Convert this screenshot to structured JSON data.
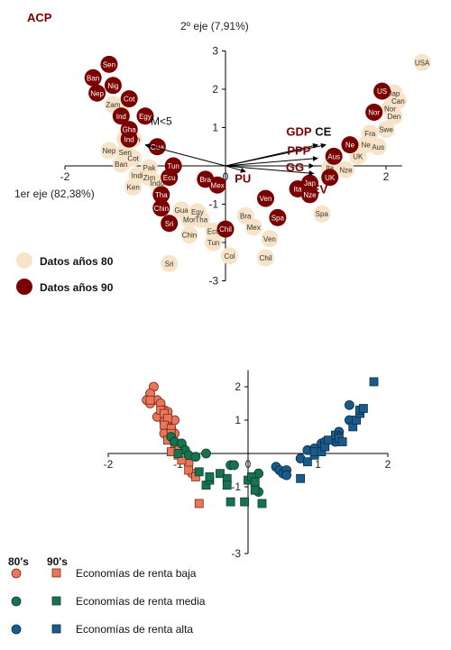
{
  "chart_data": [
    {
      "type": "scatter",
      "title": "ACP",
      "xlabel": "1er eje (82,38%)",
      "ylabel": "2º eje (7,91%)",
      "xlim": [
        -2,
        2.5
      ],
      "ylim": [
        -3,
        3
      ],
      "xticks": [
        "-2",
        "0",
        "2"
      ],
      "yticks": [
        "3",
        "2",
        "1",
        "-1",
        "-2",
        "-3"
      ],
      "colors": {
        "s80": "#f6e3c8",
        "s90": "#7a0000",
        "vector": "#000000",
        "vector_label": "#7a0000"
      },
      "vectors": [
        {
          "name": "M<5",
          "x": -1.0,
          "y": 0.55
        },
        {
          "name": "GDP",
          "x": 1.15,
          "y": 0.55
        },
        {
          "name": "CE",
          "x": 1.25,
          "y": 0.55
        },
        {
          "name": "PPP",
          "x": 1.15,
          "y": 0.2
        },
        {
          "name": "GG",
          "x": 1.1,
          "y": 0.0
        },
        {
          "name": "EV",
          "x": 1.1,
          "y": -0.2
        },
        {
          "name": "PU",
          "x": 0.25,
          "y": -0.15
        }
      ],
      "series": [
        {
          "name": "Datos años 80",
          "points": [
            {
              "label": "USA",
              "x": 2.45,
              "y": 2.7
            },
            {
              "label": "Jap",
              "x": 2.1,
              "y": 1.9
            },
            {
              "label": "Can",
              "x": 2.15,
              "y": 1.7
            },
            {
              "label": "Nor",
              "x": 2.05,
              "y": 1.5
            },
            {
              "label": "Den",
              "x": 2.1,
              "y": 1.3
            },
            {
              "label": "Swe",
              "x": 2.0,
              "y": 0.95
            },
            {
              "label": "Fra",
              "x": 1.8,
              "y": 0.85
            },
            {
              "label": "Aus",
              "x": 1.9,
              "y": 0.5
            },
            {
              "label": "Ne",
              "x": 1.75,
              "y": 0.55
            },
            {
              "label": "UK",
              "x": 1.65,
              "y": 0.25
            },
            {
              "label": "Nze",
              "x": 1.5,
              "y": -0.1
            },
            {
              "label": "Ita",
              "x": 1.3,
              "y": -0.05
            },
            {
              "label": "Spa",
              "x": 1.2,
              "y": -1.25
            },
            {
              "label": "Zam",
              "x": -1.4,
              "y": 1.6
            },
            {
              "label": "Nig",
              "x": -1.3,
              "y": 1.4
            },
            {
              "label": "Ind",
              "x": -1.25,
              "y": 0.7
            },
            {
              "label": "Ghn",
              "x": -1.15,
              "y": 0.7
            },
            {
              "label": "Nep",
              "x": -1.45,
              "y": 0.4
            },
            {
              "label": "Sen",
              "x": -1.25,
              "y": 0.35
            },
            {
              "label": "Cot",
              "x": -1.15,
              "y": 0.2
            },
            {
              "label": "Ban",
              "x": -1.3,
              "y": 0.05
            },
            {
              "label": "Pak",
              "x": -0.95,
              "y": -0.05
            },
            {
              "label": "Indi",
              "x": -1.1,
              "y": -0.25
            },
            {
              "label": "Zim",
              "x": -0.95,
              "y": -0.3
            },
            {
              "label": "Indo",
              "x": -0.85,
              "y": -0.45
            },
            {
              "label": "Ken",
              "x": -1.15,
              "y": -0.55
            },
            {
              "label": "Gua",
              "x": -0.55,
              "y": -1.15
            },
            {
              "label": "Egy",
              "x": -0.35,
              "y": -1.2
            },
            {
              "label": "Mor",
              "x": -0.45,
              "y": -1.4
            },
            {
              "label": "Tha",
              "x": -0.3,
              "y": -1.4
            },
            {
              "label": "Ecu",
              "x": -0.15,
              "y": -1.7
            },
            {
              "label": "Chin",
              "x": -0.45,
              "y": -1.8
            },
            {
              "label": "Tun",
              "x": -0.15,
              "y": -2.0
            },
            {
              "label": "Bra",
              "x": 0.25,
              "y": -1.3
            },
            {
              "label": "Mex",
              "x": 0.35,
              "y": -1.6
            },
            {
              "label": "Ven",
              "x": 0.55,
              "y": -1.9
            },
            {
              "label": "Col",
              "x": 0.05,
              "y": -2.35
            },
            {
              "label": "Chil",
              "x": 0.5,
              "y": -2.4
            },
            {
              "label": "Sri",
              "x": -0.7,
              "y": -2.55
            }
          ]
        },
        {
          "name": "Datos años 90",
          "points": [
            {
              "label": "Sen",
              "x": -1.45,
              "y": 2.65
            },
            {
              "label": "Ban",
              "x": -1.65,
              "y": 2.3
            },
            {
              "label": "Nig",
              "x": -1.4,
              "y": 2.1
            },
            {
              "label": "Nep",
              "x": -1.6,
              "y": 1.9
            },
            {
              "label": "Cot",
              "x": -1.2,
              "y": 1.75
            },
            {
              "label": "Ind",
              "x": -1.3,
              "y": 1.3
            },
            {
              "label": "Egy",
              "x": -1.0,
              "y": 1.3
            },
            {
              "label": "Gha",
              "x": -1.2,
              "y": 0.95
            },
            {
              "label": "Ind",
              "x": -1.2,
              "y": 0.7
            },
            {
              "label": "Gua",
              "x": -0.85,
              "y": 0.5
            },
            {
              "label": "Tun",
              "x": -0.65,
              "y": 0.0
            },
            {
              "label": "Ecu",
              "x": -0.7,
              "y": -0.3
            },
            {
              "label": "Tha",
              "x": -0.8,
              "y": -0.75
            },
            {
              "label": "Chin",
              "x": -0.8,
              "y": -1.1
            },
            {
              "label": "Sri",
              "x": -0.7,
              "y": -1.5
            },
            {
              "label": "Bra",
              "x": -0.25,
              "y": -0.35
            },
            {
              "label": "Mex",
              "x": -0.1,
              "y": -0.5
            },
            {
              "label": "Chil",
              "x": 0.0,
              "y": -1.65
            },
            {
              "label": "Ven",
              "x": 0.5,
              "y": -0.85
            },
            {
              "label": "Spa",
              "x": 0.65,
              "y": -1.35
            },
            {
              "label": "Ita",
              "x": 0.9,
              "y": -0.6
            },
            {
              "label": "Jap",
              "x": 1.05,
              "y": -0.45
            },
            {
              "label": "Nze",
              "x": 1.05,
              "y": -0.75
            },
            {
              "label": "UK",
              "x": 1.3,
              "y": -0.3
            },
            {
              "label": "Aus",
              "x": 1.35,
              "y": 0.25
            },
            {
              "label": "Ne",
              "x": 1.55,
              "y": 0.55
            },
            {
              "label": "Nor",
              "x": 1.85,
              "y": 1.4
            },
            {
              "label": "US",
              "x": 1.95,
              "y": 1.95
            }
          ]
        }
      ]
    },
    {
      "type": "scatter",
      "title": "",
      "xlim": [
        -2,
        2
      ],
      "ylim": [
        -3,
        2.5
      ],
      "xticks": [
        "-2",
        "-1",
        "0",
        "1",
        "2"
      ],
      "yticks": [
        "2",
        "1",
        "-1",
        "-3"
      ],
      "colors": {
        "baja": "#e8765a",
        "media": "#17734f",
        "alta": "#1a5b8e"
      },
      "legend_headers": [
        "80's",
        "90's"
      ],
      "series": [
        {
          "name": "Economías de renta baja",
          "decade": "80",
          "marker": "circle",
          "points": [
            [
              -1.35,
              2.0
            ],
            [
              -1.4,
              1.8
            ],
            [
              -1.3,
              1.6
            ],
            [
              -1.45,
              1.6
            ],
            [
              -1.25,
              1.5
            ],
            [
              -1.4,
              1.5
            ],
            [
              -1.2,
              1.3
            ],
            [
              -1.15,
              1.25
            ],
            [
              -1.3,
              1.1
            ],
            [
              -1.15,
              1.0
            ],
            [
              -1.2,
              0.95
            ],
            [
              -1.05,
              1.0
            ],
            [
              -1.1,
              0.75
            ],
            [
              -1.2,
              0.6
            ],
            [
              -1.05,
              0.6
            ],
            [
              -0.95,
              0.25
            ],
            [
              -0.85,
              -0.3
            ],
            [
              -0.8,
              -0.6
            ]
          ]
        },
        {
          "name": "Economías de renta baja",
          "decade": "90",
          "marker": "square",
          "points": [
            [
              -1.4,
              1.6
            ],
            [
              -1.25,
              1.3
            ],
            [
              -1.2,
              1.2
            ],
            [
              -1.15,
              1.05
            ],
            [
              -1.2,
              0.85
            ],
            [
              -1.1,
              0.75
            ],
            [
              -1.1,
              0.6
            ],
            [
              -1.15,
              0.4
            ],
            [
              -1.05,
              0.3
            ],
            [
              -1.0,
              0.2
            ],
            [
              -1.1,
              0.05
            ],
            [
              -1.0,
              -0.05
            ],
            [
              -0.95,
              -0.2
            ],
            [
              -0.85,
              -0.5
            ],
            [
              -0.75,
              -0.7
            ],
            [
              -0.7,
              -1.5
            ]
          ]
        },
        {
          "name": "Economías de renta media",
          "decade": "80",
          "marker": "circle",
          "points": [
            [
              -1.1,
              0.5
            ],
            [
              -1.05,
              0.35
            ],
            [
              -0.95,
              0.3
            ],
            [
              -0.9,
              0.1
            ],
            [
              -0.85,
              -0.05
            ],
            [
              -0.75,
              -0.1
            ],
            [
              -0.6,
              0.0
            ],
            [
              -0.25,
              -0.35
            ],
            [
              -0.2,
              -0.35
            ],
            [
              0.15,
              -0.6
            ],
            [
              0.15,
              -1.15
            ]
          ]
        },
        {
          "name": "Economías de renta media",
          "decade": "90",
          "marker": "square",
          "points": [
            [
              -1.0,
              0.0
            ],
            [
              -0.7,
              -0.55
            ],
            [
              -0.6,
              -0.95
            ],
            [
              -0.55,
              -0.8
            ],
            [
              -0.55,
              -0.7
            ],
            [
              -0.4,
              -0.6
            ],
            [
              -0.3,
              -0.75
            ],
            [
              -0.3,
              -0.95
            ],
            [
              -0.25,
              -1.45
            ],
            [
              0.0,
              -0.8
            ],
            [
              0.05,
              -0.7
            ],
            [
              0.1,
              -0.85
            ],
            [
              0.1,
              -1.1
            ],
            [
              0.2,
              -1.5
            ],
            [
              -0.05,
              -1.45
            ]
          ]
        },
        {
          "name": "Economías de renta alta",
          "decade": "80",
          "marker": "circle",
          "points": [
            [
              0.4,
              -0.4
            ],
            [
              0.45,
              -0.5
            ],
            [
              0.5,
              -0.6
            ],
            [
              0.55,
              -0.5
            ],
            [
              0.55,
              -0.65
            ],
            [
              0.75,
              -0.15
            ],
            [
              0.85,
              0.1
            ],
            [
              0.95,
              0.15
            ],
            [
              1.05,
              0.3
            ],
            [
              1.1,
              0.35
            ],
            [
              1.25,
              0.35
            ],
            [
              1.3,
              0.65
            ],
            [
              1.45,
              1.0
            ],
            [
              1.45,
              1.45
            ]
          ]
        },
        {
          "name": "Economías de renta alta",
          "decade": "90",
          "marker": "square",
          "points": [
            [
              0.75,
              -0.75
            ],
            [
              0.85,
              -0.25
            ],
            [
              0.95,
              -0.05
            ],
            [
              0.95,
              0.05
            ],
            [
              1.05,
              0.05
            ],
            [
              1.1,
              0.2
            ],
            [
              1.15,
              0.4
            ],
            [
              1.25,
              0.55
            ],
            [
              1.3,
              0.5
            ],
            [
              1.3,
              0.45
            ],
            [
              1.35,
              0.35
            ],
            [
              1.5,
              0.8
            ],
            [
              1.55,
              1.0
            ],
            [
              1.6,
              1.2
            ],
            [
              1.6,
              1.3
            ],
            [
              1.65,
              1.35
            ],
            [
              1.8,
              2.15
            ]
          ]
        }
      ]
    }
  ],
  "legend1": {
    "item80": "Datos años 80",
    "item90": "Datos años 90"
  },
  "legend2": {
    "h80": "80's",
    "h90": "90's",
    "baja": "Economías de renta baja",
    "media": "Economías de renta media",
    "alta": "Economías de renta alta"
  }
}
